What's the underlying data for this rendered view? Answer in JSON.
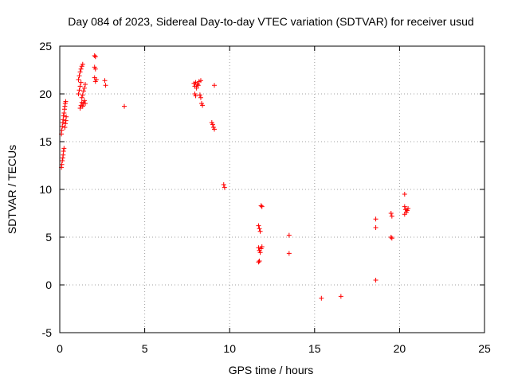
{
  "chart_data": {
    "type": "scatter",
    "title": "Day 084 of 2023, Sidereal Day-to-day VTEC variation (SDTVAR) for receiver usud",
    "xlabel": "GPS time / hours",
    "ylabel": "SDTVAR / TECUs",
    "xlim": [
      0,
      25
    ],
    "ylim": [
      -5,
      25
    ],
    "xticks": [
      0,
      5,
      10,
      15,
      20,
      25
    ],
    "yticks": [
      -5,
      0,
      5,
      10,
      15,
      20,
      25
    ],
    "xtick_labels": [
      "0",
      "5",
      "10",
      "15",
      "20",
      "25"
    ],
    "ytick_labels": [
      "-5",
      "0",
      "5",
      "10",
      "15",
      "20",
      "25"
    ],
    "grid": true,
    "marker": "+",
    "color": "#ff0000",
    "series": [
      {
        "name": "SDTVAR",
        "points": [
          [
            0.1,
            12.3
          ],
          [
            0.12,
            12.6
          ],
          [
            0.15,
            13.0
          ],
          [
            0.18,
            13.3
          ],
          [
            0.2,
            13.6
          ],
          [
            0.22,
            14.0
          ],
          [
            0.25,
            14.3
          ],
          [
            0.1,
            15.8
          ],
          [
            0.12,
            16.2
          ],
          [
            0.15,
            16.6
          ],
          [
            0.18,
            17.0
          ],
          [
            0.2,
            17.3
          ],
          [
            0.22,
            17.7
          ],
          [
            0.25,
            18.0
          ],
          [
            0.28,
            18.4
          ],
          [
            0.3,
            18.7
          ],
          [
            0.32,
            19.0
          ],
          [
            0.35,
            19.2
          ],
          [
            0.3,
            16.5
          ],
          [
            0.33,
            16.9
          ],
          [
            0.36,
            17.2
          ],
          [
            0.38,
            17.6
          ],
          [
            1.1,
            21.5
          ],
          [
            1.15,
            21.9
          ],
          [
            1.2,
            22.3
          ],
          [
            1.25,
            22.6
          ],
          [
            1.3,
            22.9
          ],
          [
            1.35,
            23.1
          ],
          [
            1.1,
            20.0
          ],
          [
            1.15,
            20.4
          ],
          [
            1.2,
            20.8
          ],
          [
            1.25,
            21.2
          ],
          [
            1.3,
            19.6
          ],
          [
            1.35,
            19.9
          ],
          [
            1.4,
            20.3
          ],
          [
            1.45,
            20.6
          ],
          [
            1.5,
            21.0
          ],
          [
            1.2,
            18.5
          ],
          [
            1.25,
            18.8
          ],
          [
            1.3,
            19.1
          ],
          [
            1.35,
            18.7
          ],
          [
            1.4,
            19.0
          ],
          [
            1.45,
            19.3
          ],
          [
            1.5,
            19.0
          ],
          [
            2.05,
            24.0
          ],
          [
            2.1,
            23.9
          ],
          [
            2.05,
            22.8
          ],
          [
            2.1,
            22.6
          ],
          [
            2.05,
            21.7
          ],
          [
            2.1,
            21.3
          ],
          [
            2.15,
            21.5
          ],
          [
            2.65,
            21.4
          ],
          [
            2.7,
            20.9
          ],
          [
            3.8,
            18.7
          ],
          [
            7.9,
            21.1
          ],
          [
            7.95,
            20.8
          ],
          [
            8.0,
            21.2
          ],
          [
            8.05,
            20.6
          ],
          [
            8.1,
            21.0
          ],
          [
            8.15,
            20.9
          ],
          [
            8.2,
            21.3
          ],
          [
            8.3,
            21.4
          ],
          [
            7.95,
            20.0
          ],
          [
            8.0,
            19.8
          ],
          [
            8.25,
            19.9
          ],
          [
            8.3,
            19.6
          ],
          [
            8.35,
            19.0
          ],
          [
            8.4,
            18.8
          ],
          [
            9.1,
            20.9
          ],
          [
            8.95,
            17.0
          ],
          [
            9.0,
            16.8
          ],
          [
            9.05,
            16.5
          ],
          [
            9.1,
            16.3
          ],
          [
            9.65,
            10.5
          ],
          [
            9.7,
            10.2
          ],
          [
            11.7,
            6.2
          ],
          [
            11.75,
            5.9
          ],
          [
            11.8,
            5.6
          ],
          [
            11.85,
            8.3
          ],
          [
            11.9,
            8.2
          ],
          [
            11.7,
            3.9
          ],
          [
            11.75,
            3.6
          ],
          [
            11.8,
            3.4
          ],
          [
            11.85,
            3.8
          ],
          [
            11.9,
            4.0
          ],
          [
            11.7,
            2.4
          ],
          [
            11.75,
            2.5
          ],
          [
            13.5,
            5.2
          ],
          [
            13.5,
            3.3
          ],
          [
            15.4,
            -1.4
          ],
          [
            16.55,
            -1.2
          ],
          [
            18.6,
            6.9
          ],
          [
            18.6,
            6.0
          ],
          [
            18.6,
            0.5
          ],
          [
            19.5,
            7.5
          ],
          [
            19.55,
            7.2
          ],
          [
            19.5,
            5.0
          ],
          [
            19.55,
            4.9
          ],
          [
            20.3,
            9.5
          ],
          [
            20.3,
            8.2
          ],
          [
            20.35,
            7.9
          ],
          [
            20.4,
            7.6
          ],
          [
            20.45,
            7.8
          ],
          [
            20.3,
            7.4
          ],
          [
            20.5,
            8.0
          ]
        ]
      }
    ]
  }
}
